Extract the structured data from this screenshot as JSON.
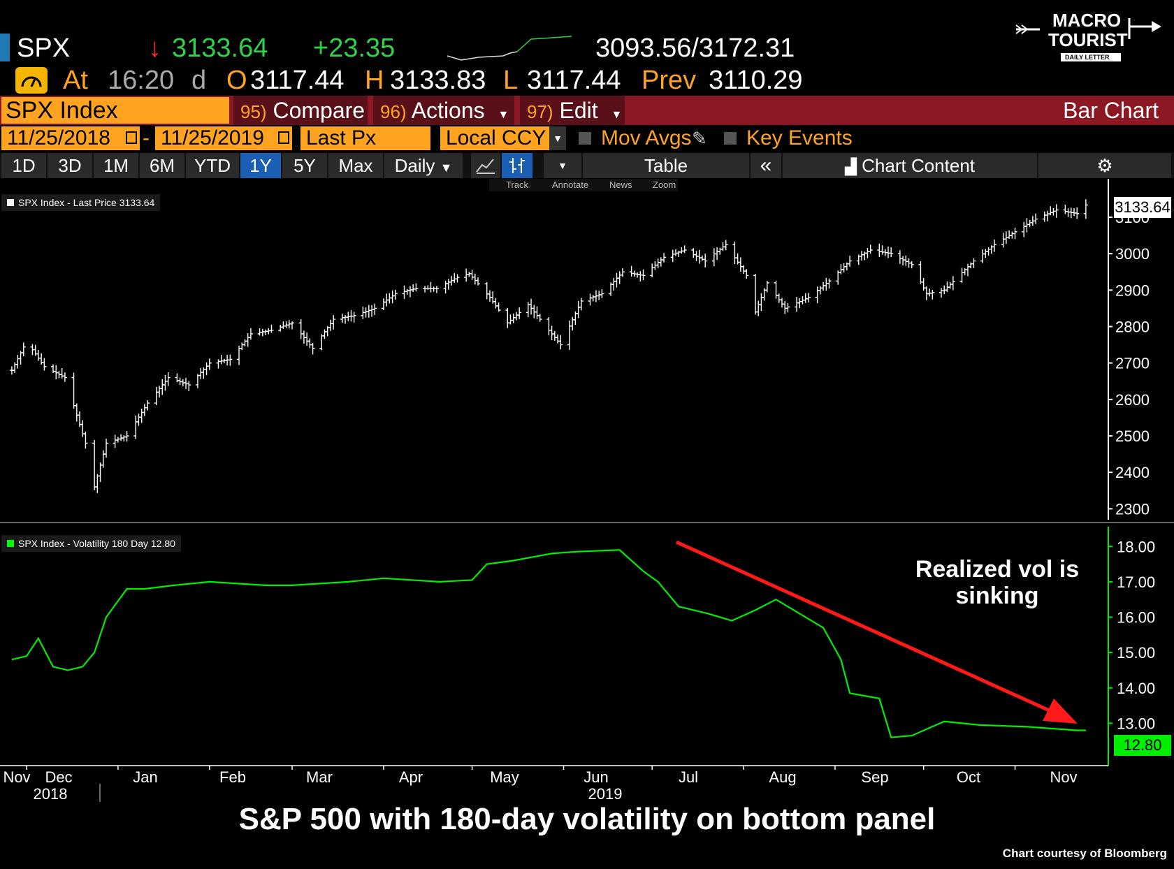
{
  "header": {
    "ticker": "SPX",
    "down_arrow": "↓",
    "last": "3133.64",
    "change": "+23.35",
    "range": "3093.56/3172.31",
    "at_label": "At",
    "time": "16:20",
    "d": "d",
    "open_label": "O",
    "open": "3117.44",
    "high_label": "H",
    "high": "3133.83",
    "low_label": "L",
    "low": "3117.44",
    "prev_label": "Prev",
    "prev": "3110.29"
  },
  "logo": {
    "line1": "MACRO",
    "line2": "TOURIST",
    "line3": "DAILY LETTER"
  },
  "toolbar": {
    "security": "SPX Index",
    "compare_num": "95)",
    "compare": "Compare",
    "actions_num": "96)",
    "actions": "Actions",
    "edit_num": "97)",
    "edit": "Edit",
    "chart_type": "Bar Chart",
    "start_date": "11/25/2018",
    "dash": "-",
    "end_date": "11/25/2019",
    "field": "Last Px",
    "currency": "Local CCY",
    "mov_avgs": "Mov Avgs",
    "key_events": "Key Events",
    "periods": [
      "1D",
      "3D",
      "1M",
      "6M",
      "YTD",
      "1Y",
      "5Y",
      "Max"
    ],
    "frequency": "Daily",
    "table": "Table",
    "chart_content": "Chart Content",
    "sub_tools": [
      "Track",
      "Annotate",
      "News",
      "Zoom"
    ]
  },
  "colors": {
    "price": "#ffffff",
    "vol": "#00ff00",
    "arrow": "#ff1a1a",
    "orange": "#ffa321",
    "header_bar": "#8b1823"
  },
  "icons": [
    "down-arrow-icon",
    "gauge-icon",
    "calendar-icon",
    "pencil-icon",
    "line-chart-icon",
    "bar-chart-icon",
    "collapse-icon",
    "chart-content-icon",
    "gear-icon"
  ],
  "chart_data": [
    {
      "type": "bar",
      "legend": "SPX Index - Last Price 3133.64",
      "last_label": "3133.64",
      "ylim": [
        2270,
        3190
      ],
      "y_ticks": [
        "3100",
        "3000",
        "2900",
        "2800",
        "2700",
        "2600",
        "2500",
        "2400",
        "2300"
      ],
      "x": [
        "2018-11-26",
        "2018-12-01",
        "2018-12-07",
        "2018-12-14",
        "2018-12-21",
        "2018-12-24",
        "2018-12-28",
        "2019-01-04",
        "2019-01-11",
        "2019-01-18",
        "2019-01-25",
        "2019-02-01",
        "2019-02-08",
        "2019-02-15",
        "2019-02-22",
        "2019-03-01",
        "2019-03-08",
        "2019-03-15",
        "2019-03-22",
        "2019-03-29",
        "2019-04-05",
        "2019-04-12",
        "2019-04-19",
        "2019-04-26",
        "2019-04-30",
        "2019-05-07",
        "2019-05-13",
        "2019-05-20",
        "2019-05-31",
        "2019-06-07",
        "2019-06-14",
        "2019-06-21",
        "2019-06-28",
        "2019-07-05",
        "2019-07-12",
        "2019-07-19",
        "2019-07-26",
        "2019-08-02",
        "2019-08-05",
        "2019-08-09",
        "2019-08-15",
        "2019-08-23",
        "2019-08-30",
        "2019-09-06",
        "2019-09-13",
        "2019-09-20",
        "2019-09-27",
        "2019-10-02",
        "2019-10-08",
        "2019-10-18",
        "2019-10-25",
        "2019-11-01",
        "2019-11-08",
        "2019-11-15",
        "2019-11-22",
        "2019-11-25"
      ],
      "values": [
        2680,
        2760,
        2690,
        2660,
        2480,
        2360,
        2480,
        2500,
        2590,
        2660,
        2640,
        2700,
        2710,
        2780,
        2790,
        2810,
        2740,
        2820,
        2830,
        2850,
        2890,
        2905,
        2905,
        2935,
        2945,
        2880,
        2810,
        2860,
        2750,
        2870,
        2890,
        2950,
        2940,
        2990,
        3010,
        2980,
        3025,
        2940,
        2840,
        2920,
        2850,
        2880,
        2925,
        2980,
        3010,
        3000,
        2970,
        2890,
        2900,
        2980,
        3025,
        3060,
        3095,
        3120,
        3110,
        3133.64
      ]
    },
    {
      "type": "line",
      "legend": "SPX Index - Volatility 180 Day 12.80",
      "last_label": "12.80",
      "ylim": [
        12.0,
        18.4
      ],
      "y_ticks": [
        "18.00",
        "17.00",
        "16.00",
        "15.00",
        "14.00",
        "13.00"
      ],
      "x": [
        "2018-11-26",
        "2018-12-01",
        "2018-12-05",
        "2018-12-10",
        "2018-12-15",
        "2018-12-20",
        "2018-12-24",
        "2018-12-28",
        "2019-01-04",
        "2019-01-10",
        "2019-01-20",
        "2019-02-01",
        "2019-02-20",
        "2019-03-01",
        "2019-03-20",
        "2019-04-01",
        "2019-04-20",
        "2019-05-01",
        "2019-05-06",
        "2019-05-15",
        "2019-05-28",
        "2019-06-05",
        "2019-06-20",
        "2019-06-28",
        "2019-07-03",
        "2019-07-10",
        "2019-07-20",
        "2019-07-28",
        "2019-08-05",
        "2019-08-12",
        "2019-08-20",
        "2019-08-28",
        "2019-09-03",
        "2019-09-06",
        "2019-09-16",
        "2019-09-20",
        "2019-09-27",
        "2019-10-08",
        "2019-10-20",
        "2019-11-05",
        "2019-11-22",
        "2019-11-25"
      ],
      "values": [
        14.8,
        14.9,
        15.4,
        14.6,
        14.5,
        14.6,
        15.0,
        16.0,
        16.8,
        16.8,
        16.9,
        17.0,
        16.9,
        16.9,
        17.0,
        17.1,
        17.0,
        17.05,
        17.5,
        17.6,
        17.8,
        17.85,
        17.9,
        17.3,
        17.0,
        16.3,
        16.1,
        15.9,
        16.2,
        16.5,
        16.1,
        15.7,
        14.8,
        13.85,
        13.7,
        12.6,
        12.65,
        13.05,
        12.95,
        12.9,
        12.8,
        12.8
      ]
    }
  ],
  "x_axis": {
    "months": [
      "Nov",
      "Dec",
      "Jan",
      "Feb",
      "Mar",
      "Apr",
      "May",
      "Jun",
      "Jul",
      "Aug",
      "Sep",
      "Oct",
      "Nov"
    ],
    "years": [
      "2018",
      "2019"
    ]
  },
  "annotation": {
    "line1": "Realized vol is",
    "line2": "sinking"
  },
  "caption": "S&P 500 with 180-day volatility on bottom panel",
  "credit": "Chart courtesy of Bloomberg"
}
